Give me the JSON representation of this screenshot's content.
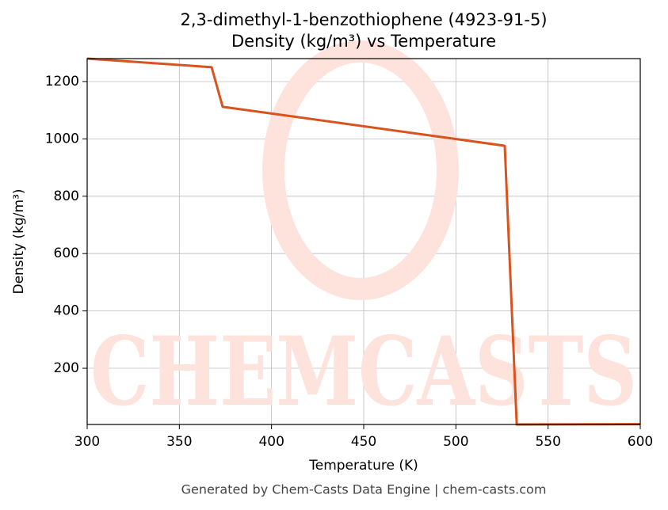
{
  "chart_data": {
    "type": "line",
    "title": "2,3-dimethyl-1-benzothiophene (4923-91-5)",
    "subtitle": "Density (kg/m³) vs Temperature",
    "x_label": "Temperature (K)",
    "y_label": "Density (kg/m³)",
    "footer": "Generated by Chem-Casts Data Engine | chem-casts.com",
    "watermark": "CHEMCASTS",
    "x": [
      300,
      367.5,
      373.5,
      526.5,
      533,
      600
    ],
    "series": [
      {
        "name": "Density",
        "color": "#d9531e",
        "values": [
          1280,
          1250,
          1112,
          976,
          4,
          5
        ]
      }
    ],
    "xlim": [
      300,
      600
    ],
    "xticks": [
      300,
      350,
      400,
      450,
      500,
      550,
      600
    ],
    "ylim": [
      4,
      1280
    ],
    "yticks": [
      200,
      400,
      600,
      800,
      1000,
      1200
    ],
    "grid": true
  }
}
